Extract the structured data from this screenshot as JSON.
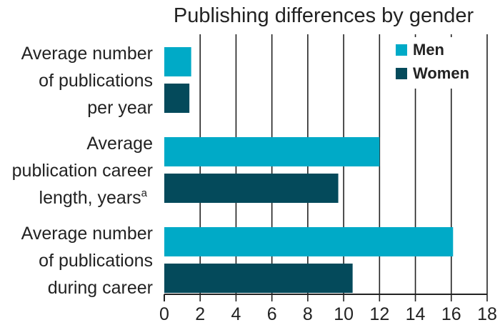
{
  "chart_data": {
    "type": "bar",
    "orientation": "horizontal",
    "title": "Publishing differences by gender",
    "categories": [
      {
        "lines": [
          "Average number",
          "of publications",
          "per year"
        ],
        "superscript": ""
      },
      {
        "lines": [
          "Average",
          "publication career",
          "length, years"
        ],
        "superscript": "a"
      },
      {
        "lines": [
          "Average number",
          "of publications",
          "during career"
        ],
        "superscript": ""
      }
    ],
    "series": [
      {
        "name": "Men",
        "color": "#00aac7",
        "values": [
          1.5,
          12.0,
          16.1
        ]
      },
      {
        "name": "Women",
        "color": "#044a5b",
        "values": [
          1.4,
          9.7,
          10.5
        ]
      }
    ],
    "xlim": [
      0,
      18
    ],
    "xticks": [
      0,
      2,
      4,
      6,
      8,
      10,
      12,
      14,
      16,
      18
    ],
    "grid": true,
    "legend_position": "top-right"
  }
}
